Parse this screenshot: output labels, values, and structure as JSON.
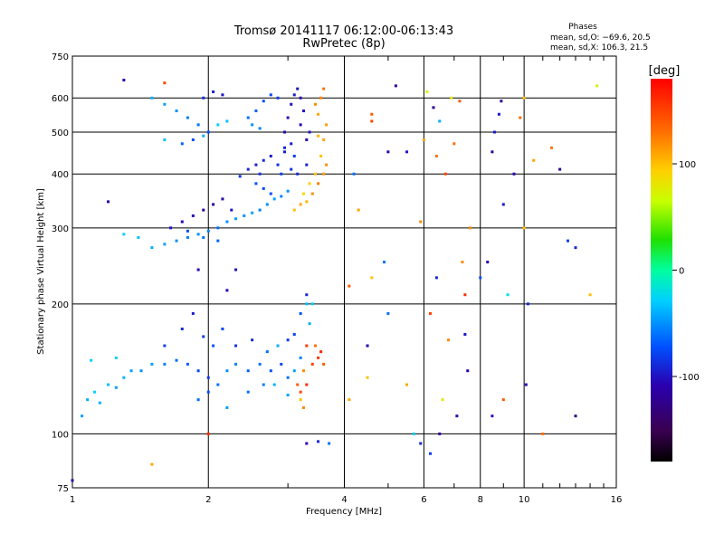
{
  "chart_data": {
    "type": "scatter",
    "title": "Tromsø 20141117 06:12:00-06:13:43",
    "subtitle": "RwPretec (8p)",
    "xlabel": "Frequency [MHz]",
    "ylabel": "Stationary phase Virtual Height [km]",
    "x_scale": "log",
    "y_scale": "log",
    "xlim": [
      1,
      16
    ],
    "ylim": [
      75,
      750
    ],
    "x_ticks": [
      1,
      2,
      4,
      6,
      8,
      10,
      16
    ],
    "x_tick_labels": [
      "1",
      "2",
      "4",
      "6",
      "8",
      "10",
      "16"
    ],
    "y_ticks": [
      75,
      100,
      200,
      300,
      400,
      500,
      600,
      750
    ],
    "y_tick_labels": [
      "75",
      "100",
      "200",
      "300",
      "400",
      "500",
      "600",
      "750"
    ],
    "grid": true,
    "stats": {
      "heading": "Phases",
      "line_o": "mean, sd,O: −69.6, 20.5",
      "line_x": "mean, sd,X: 106.3, 21.5"
    },
    "colorbar": {
      "label": "[deg]",
      "range": [
        -180,
        180
      ],
      "ticks": [
        100,
        0,
        -100
      ],
      "tick_labels": [
        "100",
        "0",
        "-100"
      ],
      "colormap": "black-purple-blue-cyan-green-yellow-orange-red"
    },
    "series": [
      {
        "points": [
          [
            1.05,
            110,
            -45
          ],
          [
            1.08,
            120,
            -40
          ],
          [
            1.12,
            125,
            -30
          ],
          [
            1.15,
            118,
            -40
          ],
          [
            1.2,
            130,
            -35
          ],
          [
            1.25,
            128,
            -45
          ],
          [
            1.3,
            135,
            -40
          ],
          [
            1.35,
            140,
            -45
          ],
          [
            1.42,
            140,
            -50
          ],
          [
            1.5,
            145,
            -45
          ],
          [
            1.6,
            145,
            -55
          ],
          [
            1.7,
            148,
            -60
          ],
          [
            1.8,
            145,
            -65
          ],
          [
            1.9,
            140,
            -75
          ],
          [
            2.0,
            135,
            -80
          ],
          [
            2.1,
            130,
            -60
          ],
          [
            2.2,
            140,
            -50
          ],
          [
            2.3,
            145,
            -55
          ],
          [
            2.45,
            140,
            -65
          ],
          [
            2.6,
            145,
            -60
          ],
          [
            2.75,
            140,
            -70
          ],
          [
            2.9,
            145,
            -75
          ],
          [
            3.0,
            135,
            -60
          ],
          [
            1.6,
            160,
            -80
          ],
          [
            1.75,
            175,
            -90
          ],
          [
            1.85,
            190,
            -95
          ],
          [
            1.95,
            168,
            -80
          ],
          [
            2.05,
            160,
            -70
          ],
          [
            2.15,
            175,
            -75
          ],
          [
            2.3,
            160,
            -85
          ],
          [
            2.5,
            165,
            -90
          ],
          [
            2.7,
            155,
            -60
          ],
          [
            2.85,
            160,
            -40
          ],
          [
            3.0,
            165,
            -80
          ],
          [
            3.1,
            170,
            -75
          ],
          [
            3.2,
            190,
            -70
          ],
          [
            3.3,
            210,
            -90
          ],
          [
            3.35,
            180,
            -40
          ],
          [
            3.1,
            140,
            -45
          ],
          [
            3.2,
            150,
            -55
          ],
          [
            1.25,
            150,
            -25
          ],
          [
            1.1,
            148,
            -30
          ],
          [
            1.9,
            120,
            -60
          ],
          [
            2.0,
            125,
            -70
          ],
          [
            2.2,
            115,
            -45
          ],
          [
            2.45,
            125,
            -60
          ],
          [
            2.65,
            130,
            -55
          ],
          [
            2.8,
            130,
            -40
          ],
          [
            3.0,
            123,
            -45
          ],
          [
            3.2,
            125,
            150
          ],
          [
            3.15,
            130,
            140
          ],
          [
            3.3,
            130,
            160
          ],
          [
            3.25,
            140,
            120
          ],
          [
            3.4,
            145,
            150
          ],
          [
            3.5,
            150,
            155
          ],
          [
            3.6,
            145,
            140
          ],
          [
            3.45,
            160,
            130
          ],
          [
            3.55,
            155,
            165
          ],
          [
            3.3,
            160,
            155
          ],
          [
            3.2,
            120,
            100
          ],
          [
            3.25,
            115,
            120
          ],
          [
            3.4,
            200,
            -30
          ],
          [
            3.3,
            200,
            -35
          ],
          [
            1.5,
            270,
            -40
          ],
          [
            1.6,
            275,
            -45
          ],
          [
            1.7,
            280,
            -50
          ],
          [
            1.8,
            285,
            -55
          ],
          [
            1.9,
            290,
            -50
          ],
          [
            2.0,
            295,
            -55
          ],
          [
            2.1,
            300,
            -60
          ],
          [
            2.2,
            310,
            -50
          ],
          [
            2.3,
            315,
            -45
          ],
          [
            2.4,
            320,
            -50
          ],
          [
            2.5,
            325,
            -45
          ],
          [
            2.6,
            330,
            -55
          ],
          [
            2.7,
            340,
            -50
          ],
          [
            2.8,
            350,
            -45
          ],
          [
            2.9,
            355,
            -55
          ],
          [
            3.0,
            365,
            -50
          ],
          [
            1.65,
            300,
            -100
          ],
          [
            1.75,
            310,
            -110
          ],
          [
            1.85,
            320,
            -105
          ],
          [
            1.95,
            330,
            -120
          ],
          [
            2.05,
            340,
            -115
          ],
          [
            2.15,
            350,
            -110
          ],
          [
            2.25,
            330,
            -100
          ],
          [
            2.1,
            280,
            -65
          ],
          [
            1.95,
            285,
            -60
          ],
          [
            1.8,
            295,
            -75
          ],
          [
            1.4,
            285,
            -35
          ],
          [
            1.3,
            290,
            -30
          ],
          [
            2.35,
            395,
            -85
          ],
          [
            2.45,
            410,
            -90
          ],
          [
            2.55,
            420,
            -95
          ],
          [
            2.65,
            430,
            -90
          ],
          [
            2.75,
            440,
            -100
          ],
          [
            2.85,
            420,
            -85
          ],
          [
            2.95,
            450,
            -95
          ],
          [
            2.55,
            380,
            -70
          ],
          [
            2.65,
            370,
            -75
          ],
          [
            2.75,
            360,
            -70
          ],
          [
            2.9,
            400,
            -80
          ],
          [
            2.6,
            400,
            -85
          ],
          [
            2.95,
            500,
            -110
          ],
          [
            3.0,
            540,
            -100
          ],
          [
            3.05,
            580,
            -105
          ],
          [
            3.1,
            610,
            -95
          ],
          [
            3.15,
            630,
            -100
          ],
          [
            3.2,
            600,
            -110
          ],
          [
            2.95,
            460,
            -90
          ],
          [
            3.05,
            470,
            -95
          ],
          [
            3.1,
            440,
            -80
          ],
          [
            3.2,
            520,
            -105
          ],
          [
            3.25,
            560,
            -100
          ],
          [
            3.05,
            410,
            -85
          ],
          [
            3.15,
            400,
            -90
          ],
          [
            3.3,
            420,
            -95
          ],
          [
            3.3,
            480,
            -110
          ],
          [
            3.35,
            500,
            -100
          ],
          [
            2.85,
            600,
            -80
          ],
          [
            2.75,
            610,
            -75
          ],
          [
            2.65,
            590,
            -70
          ],
          [
            2.55,
            560,
            -65
          ],
          [
            2.45,
            540,
            -60
          ],
          [
            2.6,
            510,
            -55
          ],
          [
            2.5,
            520,
            -50
          ],
          [
            3.1,
            330,
            100
          ],
          [
            3.2,
            340,
            110
          ],
          [
            3.3,
            345,
            105
          ],
          [
            3.4,
            360,
            120
          ],
          [
            3.5,
            380,
            125
          ],
          [
            3.6,
            400,
            115
          ],
          [
            3.65,
            420,
            120
          ],
          [
            3.55,
            440,
            100
          ],
          [
            3.6,
            480,
            110
          ],
          [
            3.65,
            520,
            115
          ],
          [
            3.55,
            600,
            125
          ],
          [
            3.6,
            630,
            130
          ],
          [
            3.45,
            580,
            120
          ],
          [
            3.5,
            550,
            110
          ],
          [
            3.25,
            360,
            90
          ],
          [
            3.35,
            380,
            95
          ],
          [
            3.45,
            400,
            100
          ],
          [
            3.5,
            490,
            105
          ],
          [
            1.5,
            600,
            -40
          ],
          [
            1.6,
            580,
            -45
          ],
          [
            1.7,
            560,
            -50
          ],
          [
            1.8,
            540,
            -55
          ],
          [
            1.9,
            520,
            -60
          ],
          [
            2.0,
            500,
            -70
          ],
          [
            1.95,
            600,
            -90
          ],
          [
            2.05,
            620,
            -95
          ],
          [
            2.15,
            610,
            -100
          ],
          [
            1.85,
            480,
            -75
          ],
          [
            1.75,
            470,
            -65
          ],
          [
            1.6,
            480,
            -35
          ],
          [
            1.95,
            490,
            -40
          ],
          [
            2.1,
            520,
            -30
          ],
          [
            2.2,
            530,
            -35
          ],
          [
            2.3,
            240,
            -100
          ],
          [
            1.9,
            240,
            -105
          ],
          [
            2.2,
            215,
            -110
          ],
          [
            1.2,
            345,
            -110
          ],
          [
            1.3,
            660,
            -110
          ],
          [
            1.5,
            85,
            110
          ],
          [
            1.6,
            650,
            150
          ],
          [
            3.3,
            95,
            -110
          ],
          [
            3.5,
            96,
            -90
          ],
          [
            3.7,
            95,
            -60
          ],
          [
            1.0,
            78,
            -110
          ],
          [
            2.0,
            100,
            160
          ],
          [
            4.3,
            330,
            110
          ],
          [
            4.5,
            160,
            -110
          ],
          [
            4.6,
            230,
            100
          ],
          [
            4.9,
            250,
            -60
          ],
          [
            5.0,
            450,
            -110
          ],
          [
            5.2,
            640,
            -120
          ],
          [
            5.5,
            450,
            -100
          ],
          [
            4.6,
            530,
            150
          ],
          [
            4.6,
            550,
            140
          ],
          [
            4.2,
            400,
            -60
          ],
          [
            4.1,
            120,
            110
          ],
          [
            4.1,
            220,
            140
          ],
          [
            4.5,
            135,
            100
          ],
          [
            5.9,
            310,
            120
          ],
          [
            6.0,
            480,
            110
          ],
          [
            6.1,
            620,
            70
          ],
          [
            6.3,
            570,
            -120
          ],
          [
            6.4,
            440,
            130
          ],
          [
            6.5,
            530,
            -40
          ],
          [
            6.7,
            400,
            150
          ],
          [
            6.9,
            600,
            80
          ],
          [
            7.0,
            470,
            130
          ],
          [
            7.2,
            590,
            140
          ],
          [
            7.3,
            250,
            120
          ],
          [
            7.4,
            210,
            160
          ],
          [
            7.5,
            140,
            -110
          ],
          [
            7.4,
            170,
            -100
          ],
          [
            8.0,
            230,
            -70
          ],
          [
            8.3,
            250,
            -110
          ],
          [
            8.5,
            450,
            -120
          ],
          [
            8.6,
            500,
            -100
          ],
          [
            8.8,
            550,
            -100
          ],
          [
            8.9,
            590,
            -120
          ],
          [
            9.0,
            340,
            -100
          ],
          [
            9.5,
            400,
            -110
          ],
          [
            9.8,
            540,
            130
          ],
          [
            10.0,
            600,
            100
          ],
          [
            10.2,
            200,
            -90
          ],
          [
            10.5,
            430,
            110
          ],
          [
            11.5,
            460,
            130
          ],
          [
            12.0,
            410,
            -120
          ],
          [
            12.5,
            280,
            -80
          ],
          [
            13.0,
            270,
            -90
          ],
          [
            14.0,
            210,
            100
          ],
          [
            14.5,
            640,
            70
          ],
          [
            6.2,
            190,
            150
          ],
          [
            6.8,
            165,
            120
          ],
          [
            6.6,
            120,
            80
          ],
          [
            7.1,
            110,
            -110
          ],
          [
            5.5,
            130,
            110
          ],
          [
            5.0,
            190,
            -60
          ],
          [
            5.9,
            95,
            -90
          ],
          [
            6.2,
            90,
            -80
          ],
          [
            6.5,
            100,
            -120
          ],
          [
            5.7,
            100,
            -30
          ],
          [
            8.5,
            110,
            -100
          ],
          [
            9.0,
            120,
            140
          ],
          [
            10.1,
            130,
            -110
          ],
          [
            11.0,
            100,
            130
          ],
          [
            13.0,
            110,
            -130
          ],
          [
            9.2,
            210,
            -20
          ],
          [
            10.0,
            300,
            100
          ],
          [
            6.4,
            230,
            -90
          ],
          [
            7.6,
            300,
            120
          ]
        ]
      }
    ]
  }
}
